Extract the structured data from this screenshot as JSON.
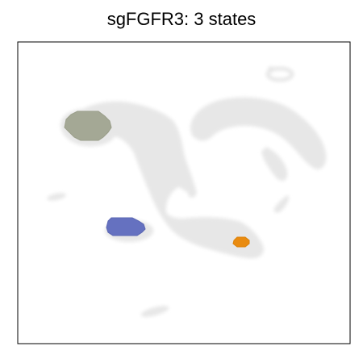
{
  "chart_data": {
    "type": "scatter",
    "title": "sgFGFR3: 3 states",
    "xlabel": "",
    "ylabel": "",
    "grid": false,
    "legend": "none",
    "background_color": "#e6e6e6",
    "series": [
      {
        "color": "#a4a895"
      },
      {
        "color": "#6571c0"
      },
      {
        "color": "#e98b10"
      }
    ]
  }
}
